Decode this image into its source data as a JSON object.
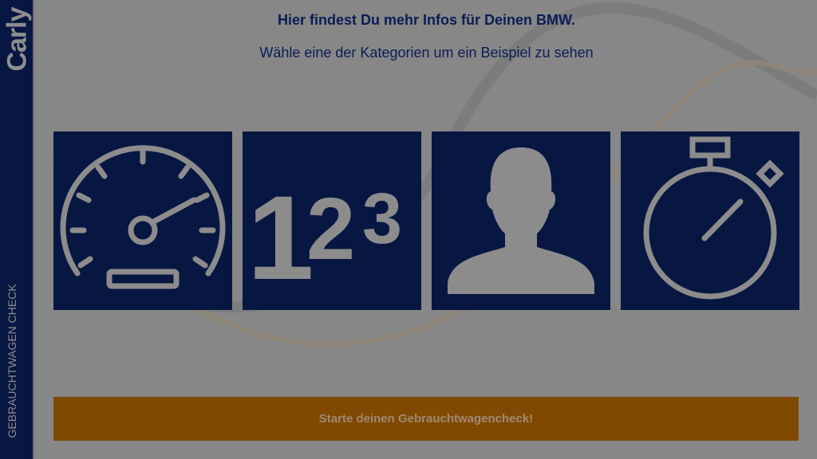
{
  "sidebar": {
    "logo": "Carly",
    "label": "GEBRAUCHTWAGEN CHECK"
  },
  "header": {
    "title": "Hier findest Du mehr Infos für Deinen BMW.",
    "subtitle": "Wähle eine der Kategorien um ein Beispiel zu sehen"
  },
  "categories": [
    {
      "icon": "speedometer-icon"
    },
    {
      "icon": "numbers-123-icon",
      "text": "123"
    },
    {
      "icon": "person-icon"
    },
    {
      "icon": "stopwatch-icon"
    }
  ],
  "cta": {
    "label": "Starte deinen Gebrauchtwagencheck!"
  },
  "colors": {
    "navy": "#071742",
    "orange": "#7f4902",
    "overlay_gray": "#878787",
    "icon_gray": "#8c8c8c"
  }
}
